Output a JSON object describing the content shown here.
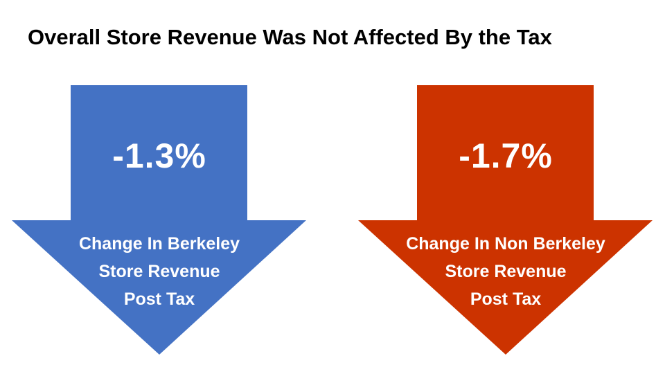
{
  "title": "Overall Store Revenue Was Not Affected By the Tax",
  "arrows": [
    {
      "value": "-1.3%",
      "caption_lines": [
        "Change In Berkeley",
        "Store Revenue",
        "Post Tax"
      ],
      "color": "#4472C4"
    },
    {
      "value": "-1.7%",
      "caption_lines": [
        "Change In Non Berkeley",
        "Store Revenue",
        "Post Tax"
      ],
      "color": "#CC3300"
    }
  ],
  "colors": {
    "background": "#ffffff",
    "title_text": "#000000",
    "arrow_text": "#ffffff"
  }
}
